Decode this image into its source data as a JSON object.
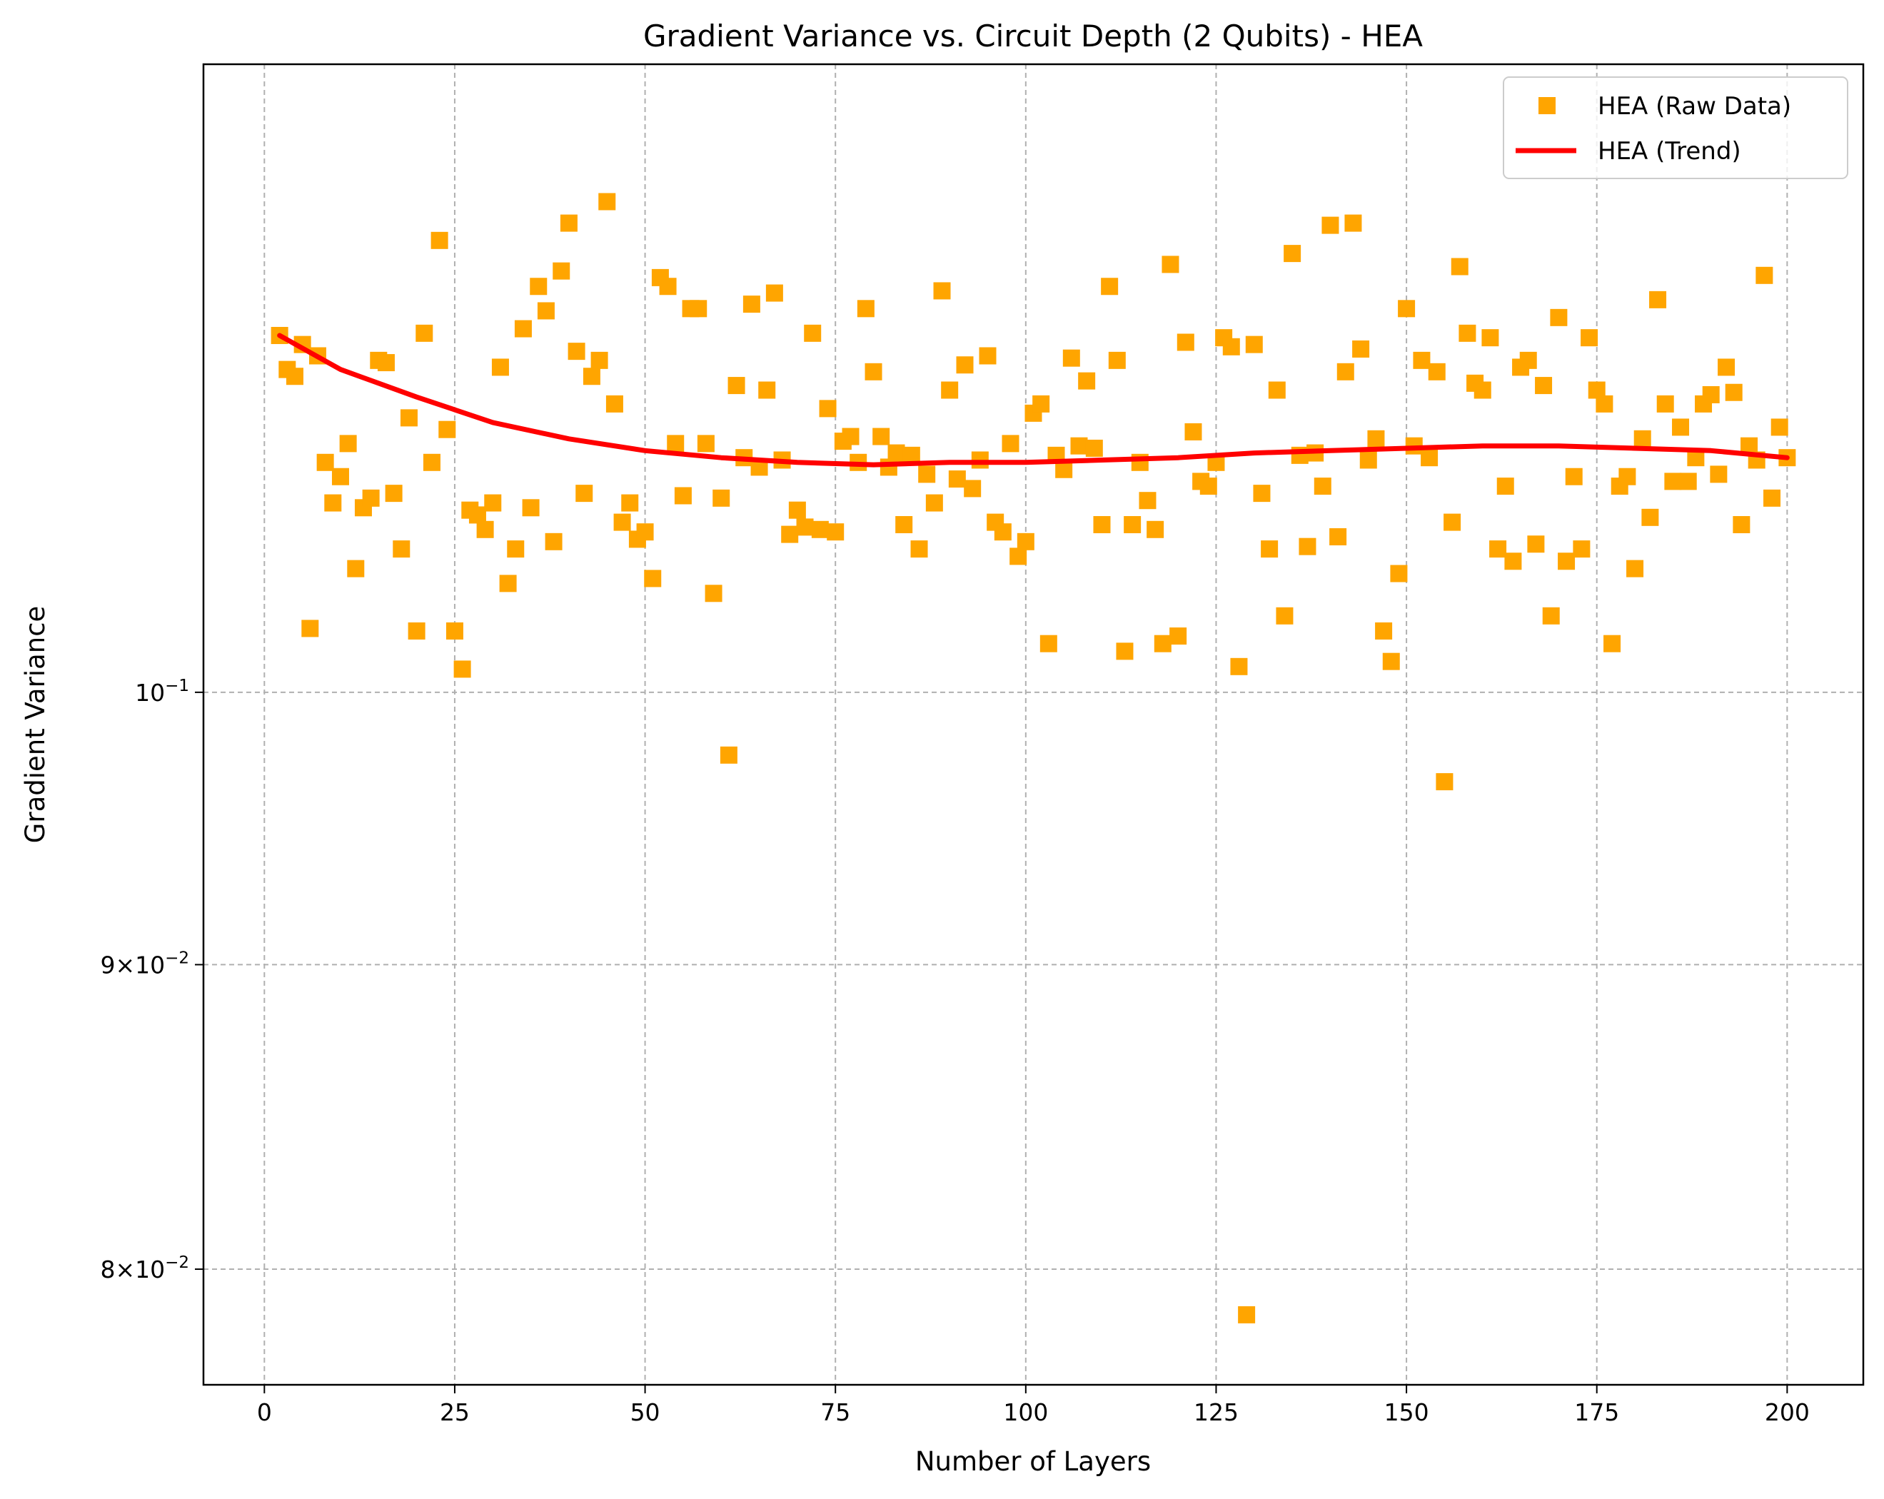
{
  "chart_data": {
    "type": "scatter",
    "title": "Gradient Variance vs. Circuit Depth (2 Qubits) - HEA",
    "xlabel": "Number of Layers",
    "ylabel": "Gradient Variance",
    "xlim": [
      -8,
      210
    ],
    "ylim": [
      0.0765,
      0.1275
    ],
    "y_scale": "log",
    "grid": true,
    "legend_position": "top-right",
    "x_ticks": [
      {
        "value": 0,
        "label": "0"
      },
      {
        "value": 25,
        "label": "25"
      },
      {
        "value": 50,
        "label": "50"
      },
      {
        "value": 75,
        "label": "75"
      },
      {
        "value": 100,
        "label": "100"
      },
      {
        "value": 125,
        "label": "125"
      },
      {
        "value": 150,
        "label": "150"
      },
      {
        "value": 175,
        "label": "175"
      },
      {
        "value": 200,
        "label": "200"
      }
    ],
    "y_ticks": [
      {
        "value": 0.08,
        "label_mantissa": "8",
        "label_times": "×10",
        "label_exp": "−2"
      },
      {
        "value": 0.09,
        "label_mantissa": "9",
        "label_times": "×10",
        "label_exp": "−2"
      },
      {
        "value": 0.1,
        "label_mantissa": "",
        "label_times": "10",
        "label_exp": "−1"
      }
    ],
    "series": [
      {
        "name": "HEA (Raw Data)",
        "kind": "scatter",
        "marker": "square",
        "color": "#ffa500",
        "points": [
          [
            2,
            0.1148
          ],
          [
            3,
            0.1133
          ],
          [
            4,
            0.113
          ],
          [
            5,
            0.1144
          ],
          [
            6,
            0.1025
          ],
          [
            7,
            0.1139
          ],
          [
            8,
            0.1093
          ],
          [
            9,
            0.1076
          ],
          [
            10,
            0.1087
          ],
          [
            11,
            0.1101
          ],
          [
            12,
            0.1049
          ],
          [
            13,
            0.1074
          ],
          [
            14,
            0.1078
          ],
          [
            15,
            0.1137
          ],
          [
            16,
            0.1136
          ],
          [
            17,
            0.108
          ],
          [
            18,
            0.1057
          ],
          [
            19,
            0.1112
          ],
          [
            20,
            0.1024
          ],
          [
            21,
            0.1149
          ],
          [
            22,
            0.1093
          ],
          [
            23,
            0.1191
          ],
          [
            24,
            0.1107
          ],
          [
            25,
            0.1024
          ],
          [
            26,
            0.1009
          ],
          [
            27,
            0.1073
          ],
          [
            28,
            0.1071
          ],
          [
            29,
            0.1065
          ],
          [
            30,
            0.1076
          ],
          [
            31,
            0.1134
          ],
          [
            32,
            0.1043
          ],
          [
            33,
            0.1057
          ],
          [
            34,
            0.1151
          ],
          [
            35,
            0.1074
          ],
          [
            36,
            0.117
          ],
          [
            37,
            0.1159
          ],
          [
            38,
            0.106
          ],
          [
            39,
            0.1177
          ],
          [
            40,
            0.1199
          ],
          [
            41,
            0.1141
          ],
          [
            42,
            0.108
          ],
          [
            43,
            0.113
          ],
          [
            44,
            0.1137
          ],
          [
            45,
            0.1209
          ],
          [
            46,
            0.1118
          ],
          [
            47,
            0.1068
          ],
          [
            48,
            0.1076
          ],
          [
            49,
            0.1061
          ],
          [
            50,
            0.1064
          ],
          [
            51,
            0.1045
          ],
          [
            52,
            0.1174
          ],
          [
            53,
            0.117
          ],
          [
            54,
            0.1101
          ],
          [
            55,
            0.1079
          ],
          [
            56,
            0.116
          ],
          [
            57,
            0.116
          ],
          [
            58,
            0.1101
          ],
          [
            59,
            0.1039
          ],
          [
            60,
            0.1078
          ],
          [
            61,
            0.0976
          ],
          [
            62,
            0.1126
          ],
          [
            63,
            0.1095
          ],
          [
            64,
            0.1162
          ],
          [
            65,
            0.1091
          ],
          [
            66,
            0.1124
          ],
          [
            67,
            0.1167
          ],
          [
            68,
            0.1094
          ],
          [
            69,
            0.1063
          ],
          [
            70,
            0.1073
          ],
          [
            71,
            0.1066
          ],
          [
            72,
            0.1149
          ],
          [
            73,
            0.1065
          ],
          [
            74,
            0.1116
          ],
          [
            75,
            0.1064
          ],
          [
            76,
            0.1102
          ],
          [
            77,
            0.1104
          ],
          [
            78,
            0.1093
          ],
          [
            79,
            0.116
          ],
          [
            80,
            0.1132
          ],
          [
            81,
            0.1104
          ],
          [
            82,
            0.1091
          ],
          [
            83,
            0.1097
          ],
          [
            84,
            0.1067
          ],
          [
            85,
            0.1096
          ],
          [
            86,
            0.1057
          ],
          [
            87,
            0.1088
          ],
          [
            88,
            0.1076
          ],
          [
            89,
            0.1168
          ],
          [
            90,
            0.1124
          ],
          [
            91,
            0.1086
          ],
          [
            92,
            0.1135
          ],
          [
            93,
            0.1082
          ],
          [
            94,
            0.1094
          ],
          [
            95,
            0.1139
          ],
          [
            96,
            0.1068
          ],
          [
            97,
            0.1064
          ],
          [
            98,
            0.1101
          ],
          [
            99,
            0.1054
          ],
          [
            100,
            0.106
          ],
          [
            101,
            0.1114
          ],
          [
            102,
            0.1118
          ],
          [
            103,
            0.1019
          ],
          [
            104,
            0.1096
          ],
          [
            105,
            0.109
          ],
          [
            106,
            0.1138
          ],
          [
            107,
            0.11
          ],
          [
            108,
            0.1128
          ],
          [
            109,
            0.1099
          ],
          [
            110,
            0.1067
          ],
          [
            111,
            0.117
          ],
          [
            112,
            0.1137
          ],
          [
            113,
            0.1016
          ],
          [
            114,
            0.1067
          ],
          [
            115,
            0.1093
          ],
          [
            116,
            0.1077
          ],
          [
            117,
            0.1065
          ],
          [
            118,
            0.1019
          ],
          [
            119,
            0.118
          ],
          [
            120,
            0.1022
          ],
          [
            121,
            0.1145
          ],
          [
            122,
            0.1106
          ],
          [
            123,
            0.1085
          ],
          [
            124,
            0.1083
          ],
          [
            125,
            0.1093
          ],
          [
            126,
            0.1147
          ],
          [
            127,
            0.1143
          ],
          [
            128,
            0.101
          ],
          [
            129,
            0.0786
          ],
          [
            130,
            0.1144
          ],
          [
            131,
            0.108
          ],
          [
            132,
            0.1057
          ],
          [
            133,
            0.1124
          ],
          [
            134,
            0.103
          ],
          [
            135,
            0.1185
          ],
          [
            136,
            0.1096
          ],
          [
            137,
            0.1058
          ],
          [
            138,
            0.1097
          ],
          [
            139,
            0.1083
          ],
          [
            140,
            0.1198
          ],
          [
            141,
            0.1062
          ],
          [
            142,
            0.1132
          ],
          [
            143,
            0.1199
          ],
          [
            144,
            0.1142
          ],
          [
            145,
            0.1094
          ],
          [
            146,
            0.1103
          ],
          [
            147,
            0.1024
          ],
          [
            148,
            0.1012
          ],
          [
            149,
            0.1047
          ],
          [
            150,
            0.116
          ],
          [
            151,
            0.11
          ],
          [
            152,
            0.1137
          ],
          [
            153,
            0.1095
          ],
          [
            154,
            0.1132
          ],
          [
            155,
            0.0966
          ],
          [
            156,
            0.1068
          ],
          [
            157,
            0.1179
          ],
          [
            158,
            0.1149
          ],
          [
            159,
            0.1127
          ],
          [
            160,
            0.1124
          ],
          [
            161,
            0.1147
          ],
          [
            162,
            0.1057
          ],
          [
            163,
            0.1083
          ],
          [
            164,
            0.1052
          ],
          [
            165,
            0.1134
          ],
          [
            166,
            0.1137
          ],
          [
            167,
            0.1059
          ],
          [
            168,
            0.1126
          ],
          [
            169,
            0.103
          ],
          [
            170,
            0.1156
          ],
          [
            171,
            0.1052
          ],
          [
            172,
            0.1087
          ],
          [
            173,
            0.1057
          ],
          [
            174,
            0.1147
          ],
          [
            175,
            0.1124
          ],
          [
            176,
            0.1118
          ],
          [
            177,
            0.1019
          ],
          [
            178,
            0.1083
          ],
          [
            179,
            0.1087
          ],
          [
            180,
            0.1049
          ],
          [
            181,
            0.1103
          ],
          [
            182,
            0.107
          ],
          [
            183,
            0.1164
          ],
          [
            184,
            0.1118
          ],
          [
            185,
            0.1085
          ],
          [
            186,
            0.1108
          ],
          [
            187,
            0.1085
          ],
          [
            188,
            0.1095
          ],
          [
            189,
            0.1118
          ],
          [
            190,
            0.1122
          ],
          [
            191,
            0.1088
          ],
          [
            192,
            0.1134
          ],
          [
            193,
            0.1123
          ],
          [
            194,
            0.1067
          ],
          [
            195,
            0.11
          ],
          [
            196,
            0.1094
          ],
          [
            197,
            0.1175
          ],
          [
            198,
            0.1078
          ],
          [
            199,
            0.1108
          ],
          [
            200,
            0.1095
          ]
        ]
      },
      {
        "name": "HEA (Trend)",
        "kind": "line",
        "color": "#ff0000",
        "points": [
          [
            2,
            0.1148
          ],
          [
            10,
            0.1133
          ],
          [
            20,
            0.1121
          ],
          [
            30,
            0.111
          ],
          [
            40,
            0.1103
          ],
          [
            50,
            0.1098
          ],
          [
            60,
            0.1095
          ],
          [
            70,
            0.1093
          ],
          [
            80,
            0.1092
          ],
          [
            90,
            0.1093
          ],
          [
            100,
            0.1093
          ],
          [
            110,
            0.1094
          ],
          [
            120,
            0.1095
          ],
          [
            130,
            0.1097
          ],
          [
            140,
            0.1098
          ],
          [
            150,
            0.1099
          ],
          [
            160,
            0.11
          ],
          [
            170,
            0.11
          ],
          [
            180,
            0.1099
          ],
          [
            190,
            0.1098
          ],
          [
            200,
            0.1095
          ]
        ]
      }
    ]
  }
}
